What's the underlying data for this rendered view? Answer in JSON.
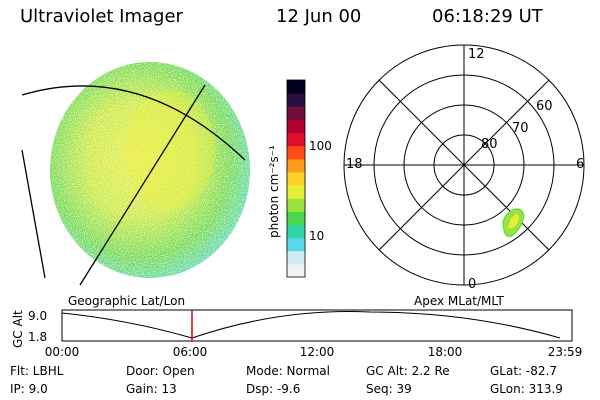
{
  "header": {
    "title": "Ultraviolet Imager",
    "date": "12 Jun 00",
    "time": "06:18:29 UT"
  },
  "colorbar": {
    "unit_label": "photon cm⁻²s⁻¹",
    "ticks": [
      "100",
      "10"
    ],
    "colors": [
      "#f2f2f2",
      "#cfeaf2",
      "#5ad8e8",
      "#2fd6a8",
      "#4ad94a",
      "#9be33a",
      "#e6ee3a",
      "#ffd22a",
      "#ff9a1a",
      "#ff4a1a",
      "#e0102a",
      "#b00030",
      "#70103a",
      "#2a1040",
      "#000020"
    ]
  },
  "polar": {
    "lat_labels": [
      "80",
      "70",
      "60"
    ],
    "mlt_labels": {
      "top": "12",
      "left": "18",
      "right": "6",
      "bottom": "0"
    }
  },
  "captions": {
    "left": "Geographic Lat/Lon",
    "right": "Apex MLat/MLT"
  },
  "timeline": {
    "axis_label": "GC Alt",
    "y_ticks": [
      "9.0",
      "1.8"
    ],
    "x_ticks": [
      "00:00",
      "06:00",
      "12:00",
      "18:00",
      "23:59"
    ],
    "current_time_marker": "06:18"
  },
  "info": {
    "flt": "Flt: LBHL",
    "ip": "IP:  9.0",
    "door": "Door: Open",
    "gain": "Gain: 13",
    "mode": "Mode: Normal",
    "dsp": "Dsp:   -9.6",
    "gcalt": "GC Alt: 2.2 Re",
    "seq": "Seq: 39",
    "glat": "GLat: -82.7",
    "glon": "GLon: 313.9"
  }
}
